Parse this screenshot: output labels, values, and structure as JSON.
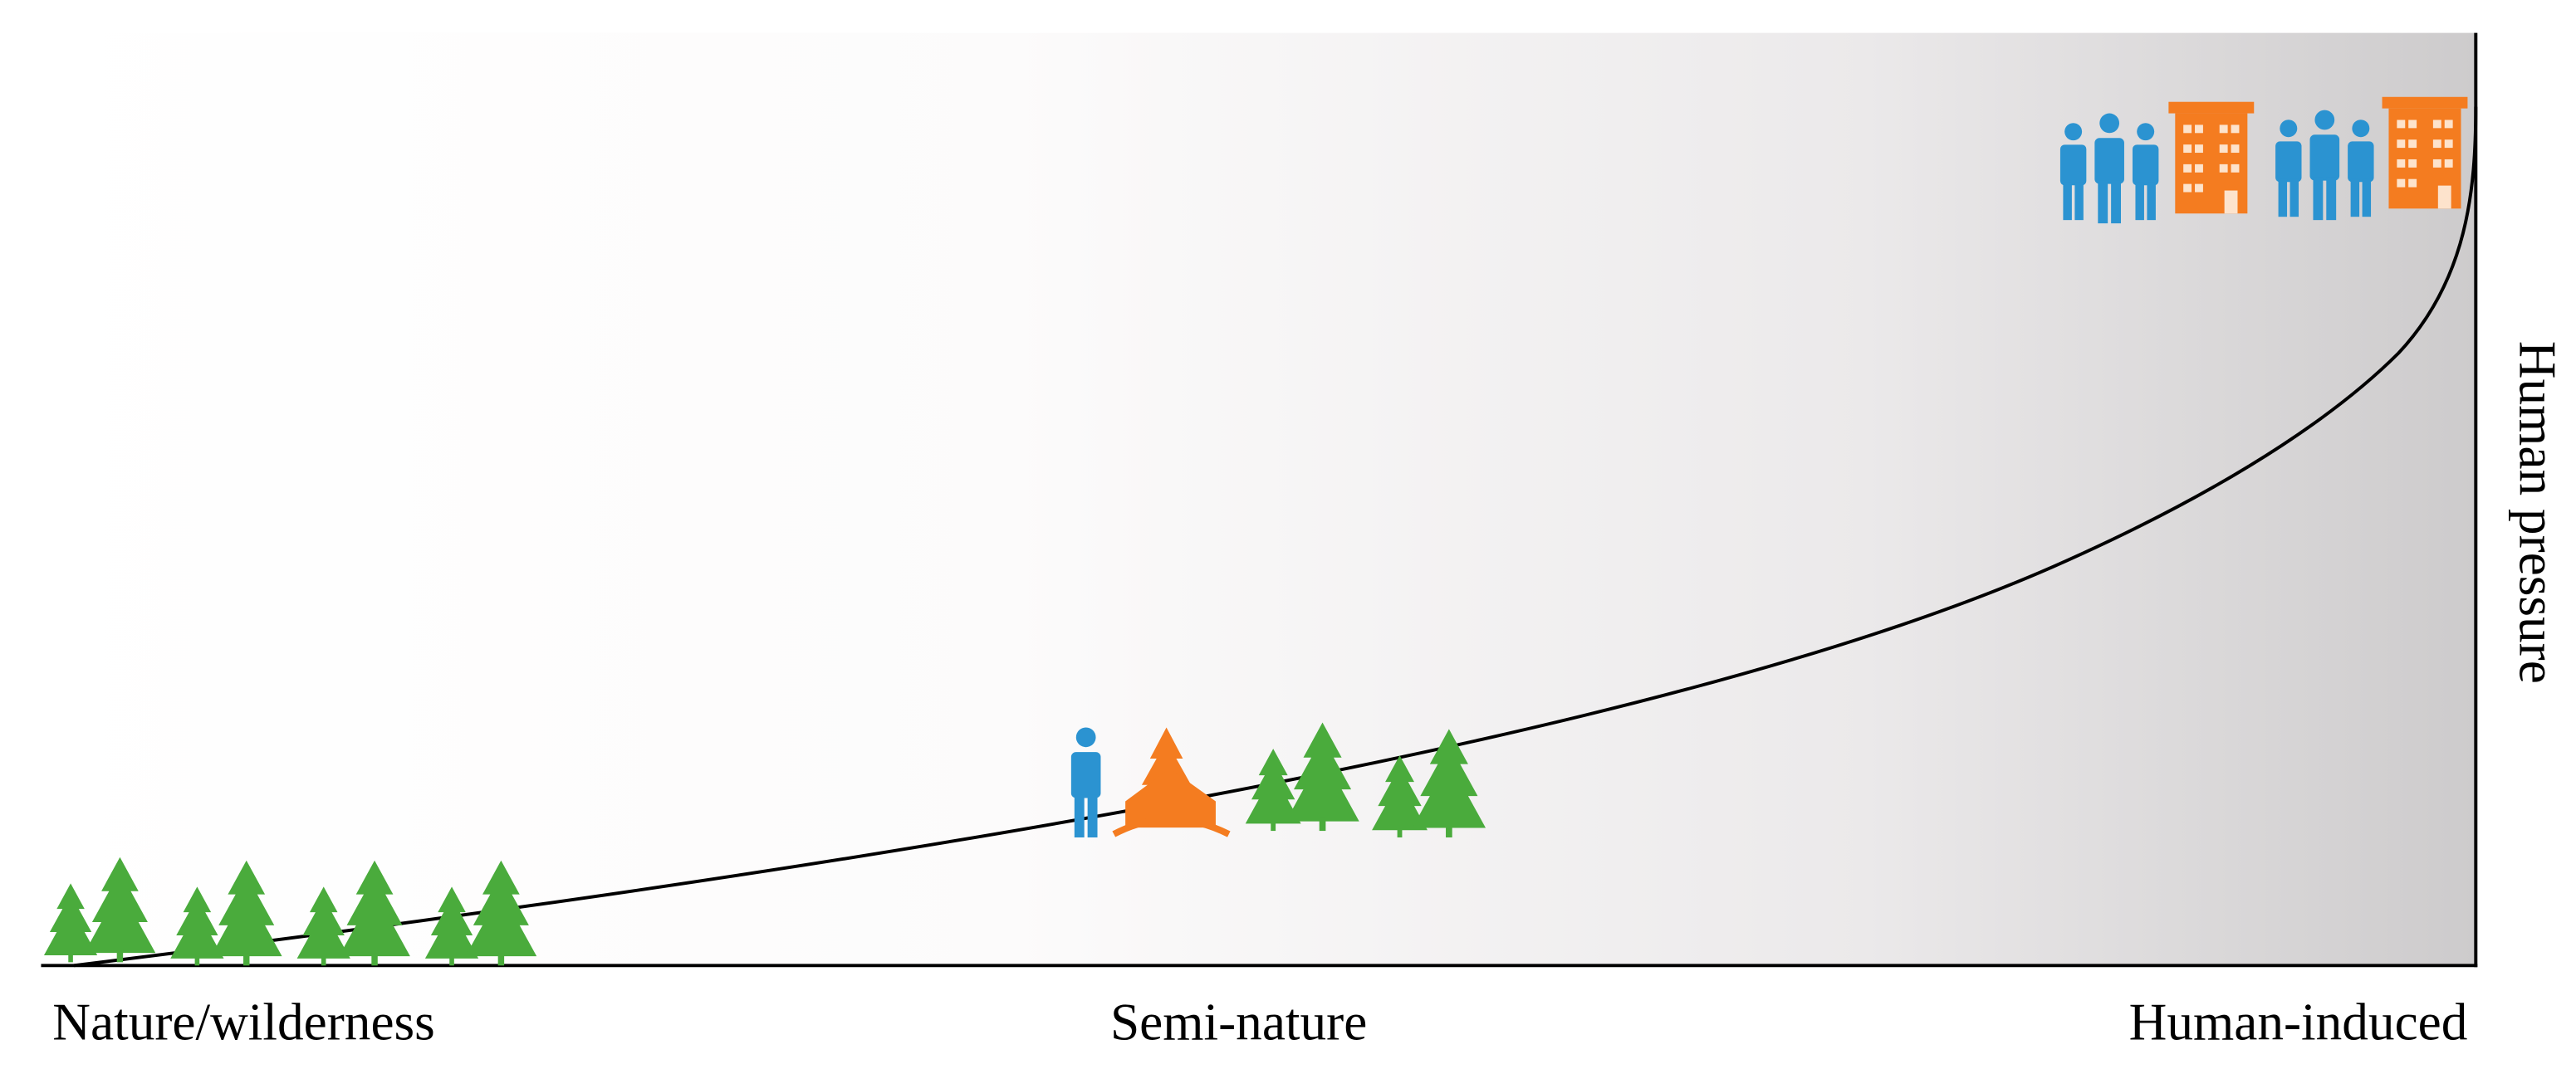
{
  "labels": {
    "left": "Nature/wilderness",
    "middle": "Semi-nature",
    "right": "Human-induced"
  },
  "axis_label": "Human pressure"
}
